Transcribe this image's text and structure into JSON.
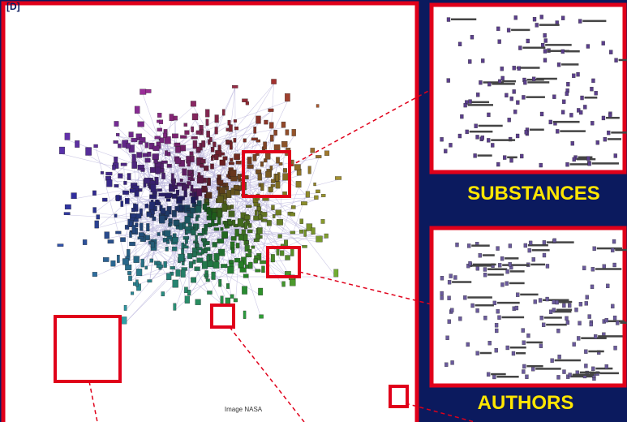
{
  "label": "[D]",
  "main": {
    "credit": "Image NASA"
  },
  "insets": [
    {
      "title": "SUBSTANCES"
    },
    {
      "title": "AUTHORS"
    }
  ]
}
